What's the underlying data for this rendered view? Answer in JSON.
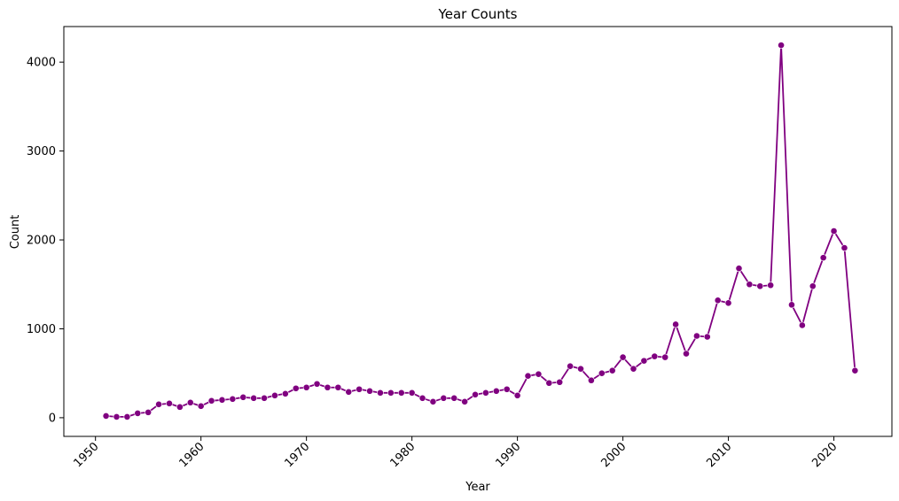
{
  "chart_data": {
    "type": "line",
    "title": "Year Counts",
    "xlabel": "Year",
    "ylabel": "Count",
    "xlim": [
      1947,
      2025.5
    ],
    "ylim": [
      -210,
      4400
    ],
    "xticks": [
      1950,
      1960,
      1970,
      1980,
      1990,
      2000,
      2010,
      2020
    ],
    "yticks": [
      0,
      1000,
      2000,
      3000,
      4000
    ],
    "grid": false,
    "legend": "none",
    "colors": {
      "series": "#800080",
      "axis": "#000000",
      "background": "#ffffff"
    },
    "series": [
      {
        "marker": "circle",
        "x": [
          1951,
          1952,
          1953,
          1954,
          1955,
          1956,
          1957,
          1958,
          1959,
          1960,
          1961,
          1962,
          1963,
          1964,
          1965,
          1966,
          1967,
          1968,
          1969,
          1970,
          1971,
          1972,
          1973,
          1974,
          1975,
          1976,
          1977,
          1978,
          1979,
          1980,
          1981,
          1982,
          1983,
          1984,
          1985,
          1986,
          1987,
          1988,
          1989,
          1990,
          1991,
          1992,
          1993,
          1994,
          1995,
          1996,
          1997,
          1998,
          1999,
          2000,
          2001,
          2002,
          2003,
          2004,
          2005,
          2006,
          2007,
          2008,
          2009,
          2010,
          2011,
          2012,
          2013,
          2014,
          2015,
          2016,
          2017,
          2018,
          2019,
          2020,
          2021,
          2022
        ],
        "y": [
          20,
          10,
          10,
          50,
          60,
          150,
          160,
          120,
          170,
          130,
          190,
          200,
          210,
          230,
          220,
          220,
          250,
          270,
          330,
          340,
          380,
          340,
          340,
          290,
          320,
          300,
          280,
          280,
          280,
          280,
          220,
          180,
          220,
          220,
          180,
          260,
          280,
          300,
          320,
          250,
          470,
          490,
          390,
          400,
          580,
          550,
          420,
          500,
          530,
          680,
          550,
          640,
          690,
          680,
          1050,
          720,
          920,
          910,
          1320,
          1290,
          1680,
          1500,
          1480,
          1490,
          4190,
          1270,
          1040,
          1480,
          1800,
          2100,
          1910,
          530
        ]
      }
    ]
  }
}
